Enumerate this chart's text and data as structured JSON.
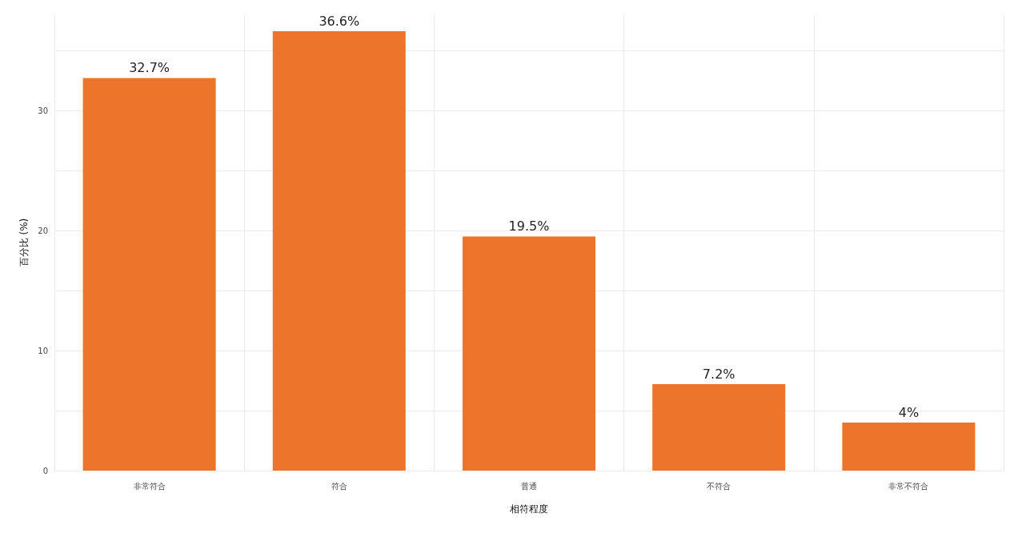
{
  "chart_data": {
    "type": "bar",
    "xlabel": "相符程度",
    "ylabel": "百分比 (%)",
    "categories": [
      "非常符合",
      "符合",
      "普通",
      "不符合",
      "非常不符合"
    ],
    "values": [
      32.7,
      36.6,
      19.5,
      7.2,
      4
    ],
    "value_labels": [
      "32.7%",
      "36.6%",
      "19.5%",
      "7.2%",
      "4%"
    ],
    "color": "#ed742b",
    "ylim": [
      0,
      38
    ],
    "yticks": [
      0,
      {
        "value": 5,
        "label": null
      },
      10,
      {
        "value": 15,
        "label": null
      },
      20,
      {
        "value": 25,
        "label": null
      },
      30,
      {
        "value": 35,
        "label": null
      }
    ],
    "grid": true
  }
}
